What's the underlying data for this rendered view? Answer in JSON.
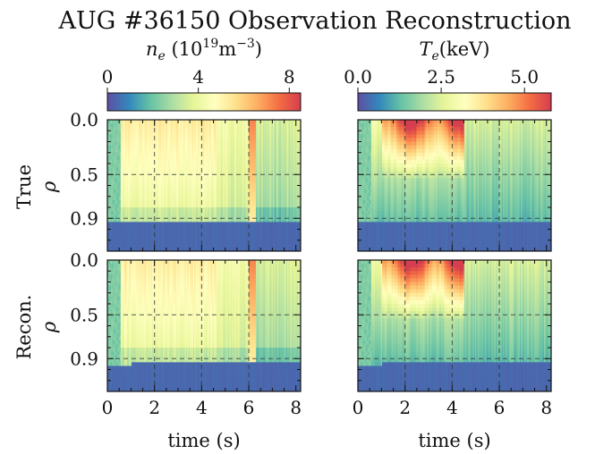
{
  "chart_data": {
    "type": "heatmap",
    "title": "AUG #36150 Observation Reconstruction",
    "colormap": "Spectral_r",
    "colormap_stops": [
      "#5e4fa2",
      "#3288bd",
      "#66c2a5",
      "#abdda4",
      "#e6f598",
      "#ffffbf",
      "#fee08b",
      "#fdae61",
      "#f46d43",
      "#d53e4f"
    ],
    "xlabel": "time (s)",
    "ylabel": "ρ",
    "xlim": [
      0,
      8.2
    ],
    "xticks": [
      "0",
      "2",
      "4",
      "6",
      "8"
    ],
    "ylim": [
      0,
      1.2
    ],
    "yticks": [
      "0.0",
      "0.5",
      "0.9"
    ],
    "gridlines": {
      "x": [
        2,
        4,
        6
      ],
      "y": [
        0.5,
        0.9
      ]
    },
    "columns": [
      {
        "label_main": "n",
        "label_sub": "e",
        "label_rest": " (10",
        "label_sup": "19",
        "label_unit": "m",
        "label_unit_sup": "−3",
        "label_close": ")",
        "colorbar_ticks": [
          {
            "value": 0,
            "label": "0"
          },
          {
            "value": 4,
            "label": "4"
          },
          {
            "value": 8,
            "label": "8"
          }
        ],
        "vmin": 0,
        "vmax": 8.5,
        "edge": 0.93,
        "recon_edge": 0.93
      },
      {
        "label_main": "T",
        "label_sub": "e",
        "label_rest": "(keV)",
        "colorbar_ticks": [
          {
            "value": 0,
            "label": "0.0"
          },
          {
            "value": 2.5,
            "label": "2.5"
          },
          {
            "value": 5,
            "label": "5.0"
          }
        ],
        "vmin": 0,
        "vmax": 5.8,
        "edge": 0.93,
        "recon_edge": 0.93
      }
    ],
    "rows": [
      {
        "label": "True"
      },
      {
        "label": "Recon."
      }
    ]
  }
}
